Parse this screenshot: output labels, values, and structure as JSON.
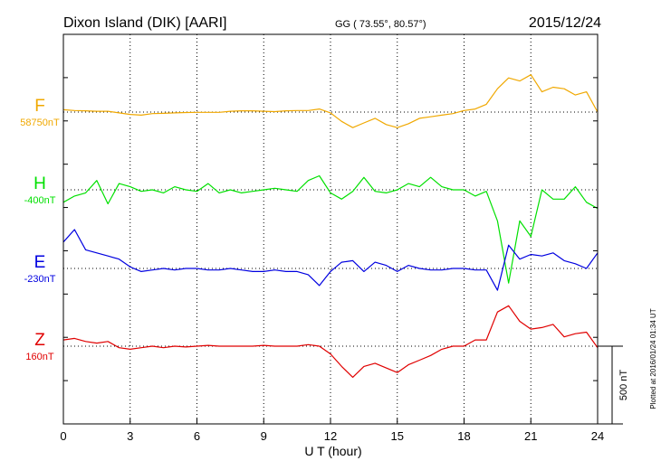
{
  "header": {
    "station": "Dixon Island (DIK)  [AARI]",
    "coords": "GG ( 73.55°,  80.57°)",
    "date": "2015/12/24"
  },
  "footnote": "Plotted at 2016/01/24 01:34 UT",
  "scale_bar": {
    "label": "500 nT",
    "value_nT": 500
  },
  "chart_data": {
    "type": "line",
    "title": "Dixon Island (DIK)  [AARI]",
    "xlabel": "U T (hour)",
    "xlim": [
      0,
      24
    ],
    "x_ticks": [
      "0",
      "3",
      "6",
      "9",
      "12",
      "15",
      "18",
      "21",
      "24"
    ],
    "grid": true,
    "nT_per_scale_bar": 500,
    "x": [
      0,
      0.5,
      1,
      1.5,
      2,
      2.5,
      3,
      3.5,
      4,
      4.5,
      5,
      5.5,
      6,
      6.5,
      7,
      7.5,
      8,
      8.5,
      9,
      9.5,
      10,
      10.5,
      11,
      11.5,
      12,
      12.5,
      13,
      13.5,
      14,
      14.5,
      15,
      15.5,
      16,
      16.5,
      17,
      17.5,
      18,
      18.5,
      19,
      19.5,
      20,
      20.5,
      21,
      21.5,
      22,
      22.5,
      23,
      23.5,
      24
    ],
    "series": [
      {
        "name": "F",
        "baseline": "58750nT",
        "color": "#f0a800",
        "values": [
          15,
          10,
          8,
          5,
          5,
          -5,
          -15,
          -20,
          -10,
          -8,
          -5,
          -3,
          -2,
          -2,
          -2,
          5,
          8,
          8,
          5,
          3,
          8,
          10,
          10,
          20,
          -5,
          -60,
          -100,
          -70,
          -40,
          -80,
          -100,
          -75,
          -40,
          -30,
          -20,
          -10,
          10,
          20,
          50,
          150,
          220,
          200,
          240,
          130,
          160,
          150,
          110,
          130,
          0
        ]
      },
      {
        "name": "H",
        "baseline": "-400nT",
        "color": "#00e000",
        "values": [
          -80,
          -40,
          -20,
          60,
          -90,
          40,
          20,
          -10,
          0,
          -20,
          20,
          0,
          -10,
          40,
          -20,
          0,
          -20,
          -10,
          0,
          10,
          0,
          -10,
          60,
          90,
          -20,
          -60,
          -10,
          80,
          -10,
          -20,
          0,
          40,
          20,
          80,
          20,
          0,
          0,
          -40,
          -10,
          -200,
          -600,
          -200,
          -300,
          0,
          -60,
          -60,
          20,
          -80,
          -120
        ]
      },
      {
        "name": "E",
        "baseline": "-230nT",
        "color": "#0000e0",
        "values": [
          170,
          250,
          120,
          100,
          80,
          60,
          10,
          -20,
          -10,
          0,
          -10,
          0,
          0,
          -10,
          -10,
          0,
          -10,
          -20,
          -20,
          -10,
          -20,
          -20,
          -40,
          -110,
          -20,
          40,
          50,
          -20,
          40,
          20,
          -20,
          20,
          0,
          -10,
          -10,
          0,
          0,
          -10,
          -10,
          -140,
          150,
          60,
          90,
          80,
          100,
          50,
          30,
          0,
          100
        ]
      },
      {
        "name": "Z",
        "baseline": "160nT",
        "color": "#e00000",
        "values": [
          40,
          50,
          30,
          20,
          30,
          -10,
          -20,
          -10,
          0,
          -10,
          0,
          -5,
          0,
          5,
          0,
          0,
          0,
          0,
          5,
          0,
          0,
          0,
          10,
          0,
          -50,
          -130,
          -200,
          -130,
          -110,
          -140,
          -170,
          -120,
          -90,
          -60,
          -20,
          0,
          0,
          40,
          40,
          220,
          260,
          160,
          110,
          120,
          140,
          60,
          80,
          90,
          -10
        ]
      }
    ]
  }
}
